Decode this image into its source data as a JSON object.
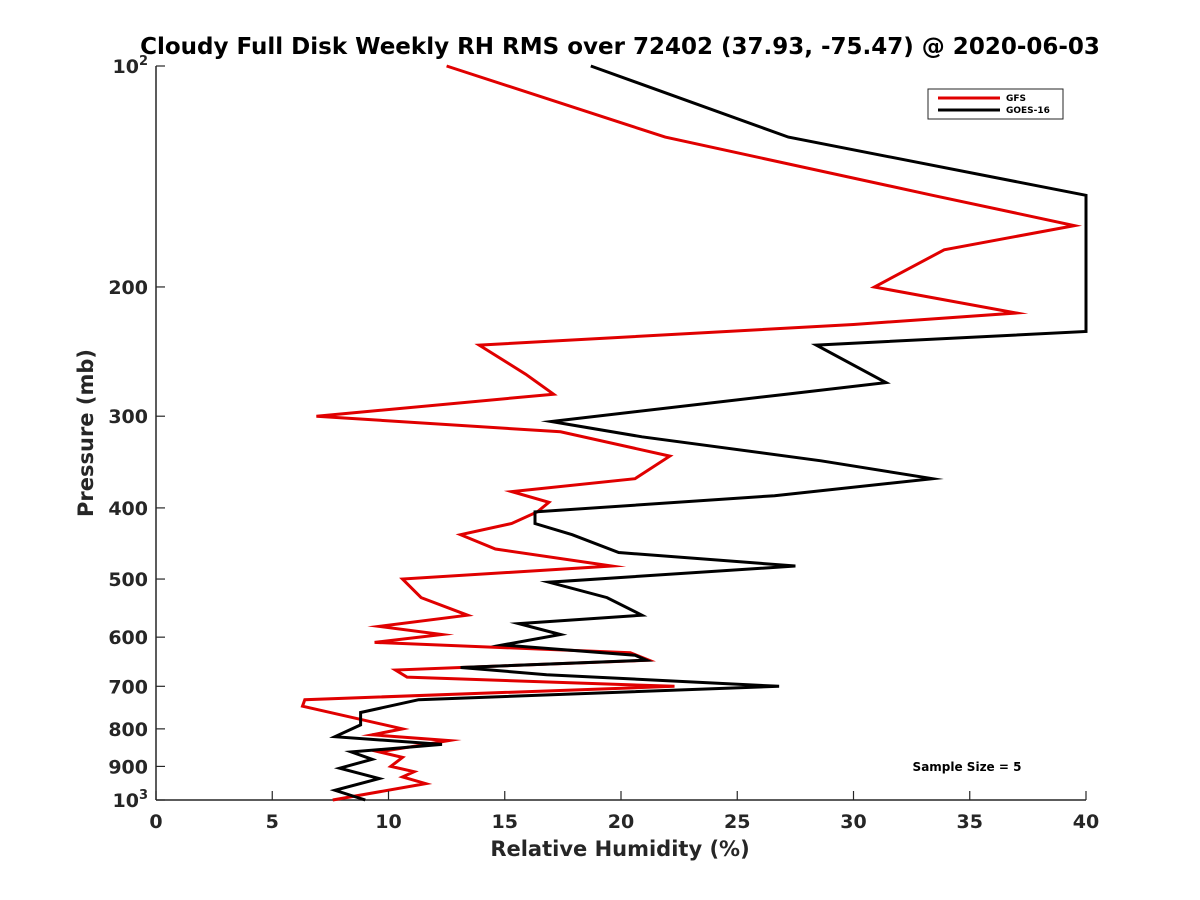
{
  "chart_data": {
    "type": "line",
    "title": "Cloudy Full Disk Weekly RH RMS over 72402 (37.93, -75.47) @ 2020-06-03",
    "xlabel": "Relative Humidity (%)",
    "ylabel": "Pressure (mb)",
    "xlim": [
      0,
      40
    ],
    "ylim": [
      100,
      1000
    ],
    "yscale": "log",
    "y_reversed": true,
    "x_ticks": [
      0,
      5,
      10,
      15,
      20,
      25,
      30,
      35,
      40
    ],
    "x_tick_labels": [
      "0",
      "5",
      "10",
      "15",
      "20",
      "25",
      "30",
      "35",
      "40"
    ],
    "y_ticks": [
      100,
      200,
      300,
      400,
      500,
      600,
      700,
      800,
      900,
      1000
    ],
    "y_tick_labels": [
      {
        "base": "10",
        "exp": "2"
      },
      {
        "base": "200"
      },
      {
        "base": "300"
      },
      {
        "base": "400"
      },
      {
        "base": "500"
      },
      {
        "base": "600"
      },
      {
        "base": "700"
      },
      {
        "base": "800"
      },
      {
        "base": "900"
      },
      {
        "base": "10",
        "exp": "3"
      }
    ],
    "grid": false,
    "legend_position": "top-right",
    "annotation": "Sample Size = 5",
    "series": [
      {
        "name": "GFS",
        "color": "#e00000",
        "points": [
          [
            12.5,
            100
          ],
          [
            21.9,
            125
          ],
          [
            33.4,
            150
          ],
          [
            39.5,
            165
          ],
          [
            33.9,
            178
          ],
          [
            30.9,
            200
          ],
          [
            37.0,
            217
          ],
          [
            30.0,
            225
          ],
          [
            13.9,
            240
          ],
          [
            15.9,
            263
          ],
          [
            17.1,
            280
          ],
          [
            6.9,
            300
          ],
          [
            17.4,
            315
          ],
          [
            22.1,
            340
          ],
          [
            20.6,
            365
          ],
          [
            15.3,
            380
          ],
          [
            16.9,
            393
          ],
          [
            16.4,
            405
          ],
          [
            15.3,
            420
          ],
          [
            13.1,
            435
          ],
          [
            14.6,
            455
          ],
          [
            19.6,
            480
          ],
          [
            10.6,
            500
          ],
          [
            11.4,
            530
          ],
          [
            13.4,
            560
          ],
          [
            9.6,
            580
          ],
          [
            12.3,
            595
          ],
          [
            9.4,
            610
          ],
          [
            20.4,
            630
          ],
          [
            21.2,
            645
          ],
          [
            10.3,
            665
          ],
          [
            10.8,
            680
          ],
          [
            22.3,
            700
          ],
          [
            6.4,
            730
          ],
          [
            6.3,
            745
          ],
          [
            10.6,
            800
          ],
          [
            9.3,
            815
          ],
          [
            12.6,
            830
          ],
          [
            9.6,
            860
          ],
          [
            10.6,
            875
          ],
          [
            10.1,
            900
          ],
          [
            11.1,
            915
          ],
          [
            10.6,
            930
          ],
          [
            11.6,
            950
          ],
          [
            7.6,
            1000
          ]
        ]
      },
      {
        "name": "GOES-16",
        "color": "#000000",
        "points": [
          [
            18.7,
            100
          ],
          [
            27.2,
            125
          ],
          [
            40.0,
            150
          ],
          [
            40.0,
            230
          ],
          [
            28.4,
            240
          ],
          [
            31.4,
            270
          ],
          [
            27.1,
            280
          ],
          [
            17.0,
            305
          ],
          [
            20.9,
            320
          ],
          [
            28.6,
            345
          ],
          [
            33.4,
            365
          ],
          [
            26.6,
            385
          ],
          [
            16.3,
            405
          ],
          [
            16.3,
            420
          ],
          [
            17.9,
            435
          ],
          [
            19.9,
            460
          ],
          [
            27.5,
            480
          ],
          [
            16.9,
            505
          ],
          [
            19.4,
            530
          ],
          [
            20.9,
            560
          ],
          [
            15.6,
            575
          ],
          [
            17.4,
            595
          ],
          [
            14.9,
            615
          ],
          [
            20.6,
            635
          ],
          [
            21.1,
            645
          ],
          [
            13.1,
            660
          ],
          [
            16.8,
            675
          ],
          [
            26.8,
            700
          ],
          [
            11.3,
            730
          ],
          [
            8.8,
            760
          ],
          [
            8.8,
            790
          ],
          [
            7.7,
            820
          ],
          [
            12.3,
            840
          ],
          [
            8.4,
            860
          ],
          [
            9.3,
            880
          ],
          [
            7.9,
            905
          ],
          [
            9.6,
            935
          ],
          [
            7.7,
            970
          ],
          [
            9.0,
            1000
          ]
        ]
      }
    ]
  }
}
